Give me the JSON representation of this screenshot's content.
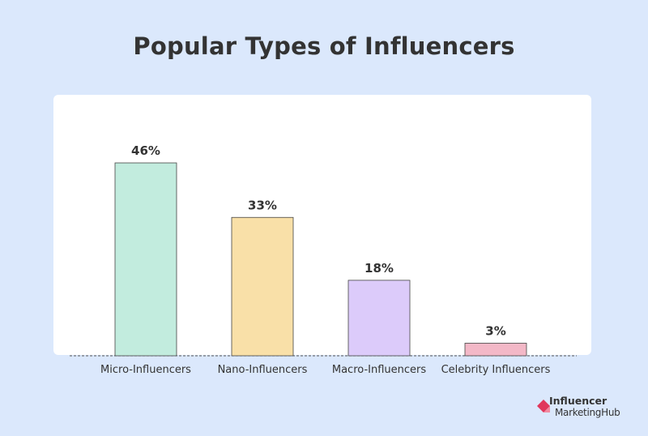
{
  "chart_data": {
    "type": "bar",
    "title": "Popular Types of Influencers",
    "categories": [
      "Micro-Influencers",
      "Nano-Influencers",
      "Macro-Influencers",
      "Celebrity Influencers"
    ],
    "values": [
      46,
      33,
      18,
      3
    ],
    "data_labels": [
      "46%",
      "33%",
      "18%",
      "3%"
    ],
    "unit": "%",
    "ylim": [
      0,
      46
    ],
    "grid": false,
    "xlabel": "",
    "ylabel": "",
    "colors": {
      "bars": [
        "#c2ecde",
        "#f9e0a8",
        "#dccbfa",
        "#f3b8c7"
      ],
      "bar_stroke": "#444444",
      "background": "#dbe8fc",
      "panel": "#ffffff",
      "text": "#333333"
    }
  },
  "logo": {
    "line1": "Influencer",
    "line2": "MarketingHub",
    "icon": "diamond-logo-icon",
    "color_primary": "#e0375c",
    "color_secondary": "#f28aa0"
  }
}
